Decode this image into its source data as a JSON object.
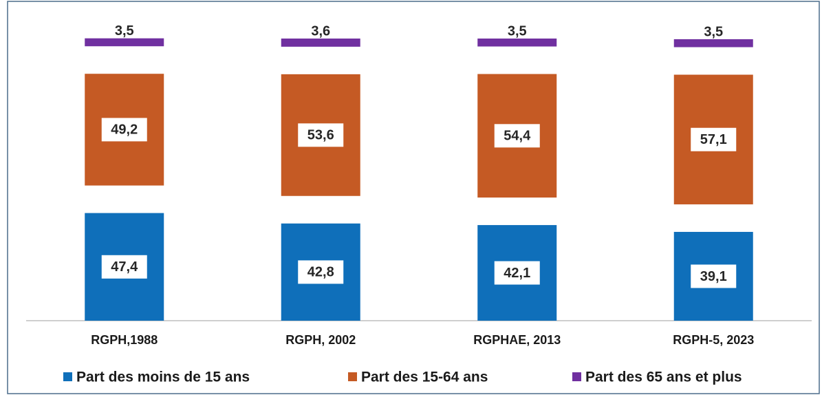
{
  "chart_data": {
    "type": "bar",
    "stacked": true,
    "categories": [
      "RGPH,1988",
      "RGPH, 2002",
      "RGPHAE, 2013",
      "RGPH-5, 2023"
    ],
    "series": [
      {
        "name": "Part des moins de 15 ans",
        "color": "#0f6fba",
        "values": [
          47.4,
          42.8,
          42.1,
          39.1
        ],
        "value_labels": [
          "47,4",
          "42,8",
          "42,1",
          "39,1"
        ]
      },
      {
        "name": "Part des 15-64 ans",
        "color": "#c55a24",
        "values": [
          49.2,
          53.6,
          54.4,
          57.1
        ],
        "value_labels": [
          "49,2",
          "53,6",
          "54,4",
          "57,1"
        ]
      },
      {
        "name": "Part des 65 ans et plus",
        "color": "#7030a0",
        "values": [
          3.5,
          3.6,
          3.5,
          3.5
        ],
        "value_labels": [
          "3,5",
          "3,6",
          "3,5",
          "3,5"
        ]
      }
    ]
  }
}
